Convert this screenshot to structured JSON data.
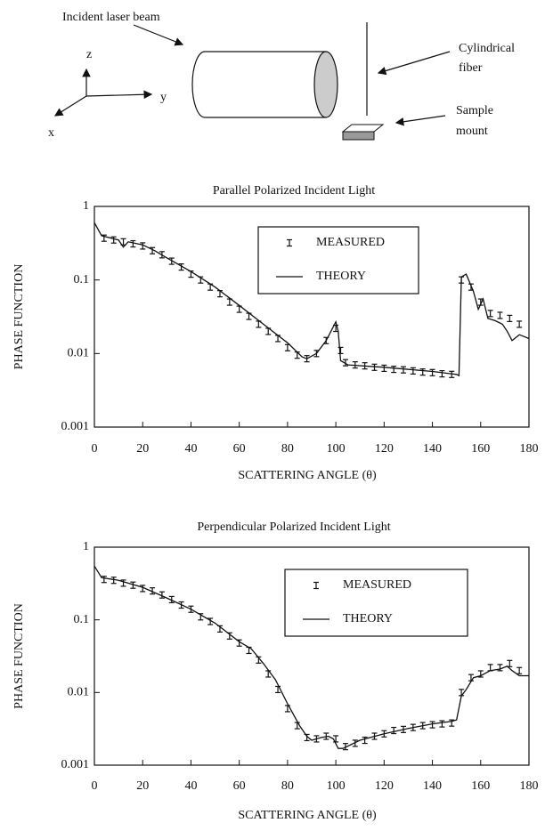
{
  "diagram": {
    "beam_label": "Incident laser beam",
    "axis_z": "z",
    "axis_y": "y",
    "axis_x": "x",
    "fiber_label": [
      "Cylindrical",
      "fiber"
    ],
    "mount_label": [
      "Sample",
      "mount"
    ]
  },
  "chart_data": [
    {
      "type": "line",
      "title": "Parallel Polarized Incident Light",
      "xlabel": "SCATTERING ANGLE (θ)",
      "ylabel": "PHASE FUNCTION",
      "xlim": [
        0,
        180
      ],
      "xticks": [
        0,
        20,
        40,
        60,
        80,
        100,
        120,
        140,
        160,
        180
      ],
      "ylim": [
        0.001,
        1
      ],
      "yticks": [
        0.001,
        0.01,
        0.1,
        1
      ],
      "yscale": "log",
      "series": [
        {
          "name": "MEASURED",
          "style": "errorbar",
          "color": "#111111",
          "x": [
            4,
            8,
            12,
            16,
            20,
            24,
            28,
            32,
            36,
            40,
            44,
            48,
            52,
            56,
            60,
            64,
            68,
            72,
            76,
            80,
            84,
            88,
            92,
            96,
            100,
            102,
            104,
            108,
            112,
            116,
            120,
            124,
            128,
            132,
            136,
            140,
            144,
            148,
            152,
            156,
            160,
            164,
            168,
            172,
            176
          ],
          "values": [
            0.37,
            0.35,
            0.33,
            0.31,
            0.29,
            0.25,
            0.22,
            0.18,
            0.15,
            0.12,
            0.1,
            0.08,
            0.065,
            0.05,
            0.04,
            0.032,
            0.025,
            0.02,
            0.016,
            0.012,
            0.0095,
            0.0085,
            0.01,
            0.015,
            0.022,
            0.011,
            0.0075,
            0.007,
            0.0068,
            0.0065,
            0.0063,
            0.0061,
            0.006,
            0.0058,
            0.0056,
            0.0055,
            0.0053,
            0.0052,
            0.1,
            0.08,
            0.05,
            0.035,
            0.033,
            0.03,
            0.025
          ]
        },
        {
          "name": "THEORY",
          "style": "line",
          "color": "#111111",
          "x": [
            0,
            3,
            10,
            12,
            14,
            20,
            25,
            30,
            40,
            50,
            60,
            70,
            80,
            86,
            88,
            92,
            96,
            100,
            101,
            102,
            105,
            120,
            140,
            150,
            151,
            152,
            154,
            157,
            159,
            161,
            163,
            166,
            169,
            171,
            173,
            176,
            178,
            180
          ],
          "values": [
            0.6,
            0.4,
            0.35,
            0.28,
            0.33,
            0.3,
            0.25,
            0.2,
            0.13,
            0.08,
            0.045,
            0.025,
            0.014,
            0.009,
            0.0085,
            0.01,
            0.015,
            0.027,
            0.02,
            0.008,
            0.007,
            0.0065,
            0.0057,
            0.0052,
            0.005,
            0.11,
            0.12,
            0.07,
            0.04,
            0.055,
            0.03,
            0.028,
            0.025,
            0.02,
            0.015,
            0.018,
            0.017,
            0.016
          ]
        }
      ]
    },
    {
      "type": "line",
      "title": "Perpendicular Polarized Incident Light",
      "xlabel": "SCATTERING ANGLE (θ)",
      "ylabel": "PHASE FUNCTION",
      "xlim": [
        0,
        180
      ],
      "xticks": [
        0,
        20,
        40,
        60,
        80,
        100,
        120,
        140,
        160,
        180
      ],
      "ylim": [
        0.001,
        1
      ],
      "yticks": [
        0.001,
        0.01,
        0.1,
        1
      ],
      "yscale": "log",
      "series": [
        {
          "name": "MEASURED",
          "style": "errorbar",
          "color": "#111111",
          "x": [
            4,
            8,
            12,
            16,
            20,
            24,
            28,
            32,
            36,
            40,
            44,
            48,
            52,
            56,
            60,
            64,
            68,
            72,
            76,
            80,
            84,
            88,
            92,
            96,
            100,
            104,
            108,
            112,
            116,
            120,
            124,
            128,
            132,
            136,
            140,
            144,
            148,
            152,
            156,
            160,
            164,
            168,
            172,
            176
          ],
          "values": [
            0.36,
            0.35,
            0.32,
            0.3,
            0.27,
            0.25,
            0.22,
            0.19,
            0.16,
            0.14,
            0.11,
            0.095,
            0.075,
            0.06,
            0.048,
            0.038,
            0.028,
            0.018,
            0.011,
            0.006,
            0.0035,
            0.0024,
            0.0023,
            0.0025,
            0.0023,
            0.0018,
            0.002,
            0.0022,
            0.0025,
            0.0027,
            0.003,
            0.0031,
            0.0033,
            0.0035,
            0.0036,
            0.0037,
            0.0038,
            0.01,
            0.016,
            0.018,
            0.022,
            0.022,
            0.025,
            0.02
          ]
        },
        {
          "name": "THEORY",
          "style": "line",
          "color": "#111111",
          "x": [
            0,
            3,
            10,
            20,
            30,
            40,
            50,
            60,
            65,
            70,
            75,
            80,
            85,
            88,
            90,
            94,
            97,
            99,
            101,
            103,
            110,
            120,
            130,
            140,
            148,
            150,
            152,
            154,
            157,
            160,
            164,
            168,
            171,
            173,
            176,
            180
          ],
          "values": [
            0.55,
            0.38,
            0.35,
            0.28,
            0.2,
            0.14,
            0.09,
            0.05,
            0.04,
            0.025,
            0.015,
            0.007,
            0.0035,
            0.0025,
            0.0022,
            0.0024,
            0.0025,
            0.0023,
            0.0017,
            0.0017,
            0.0022,
            0.0027,
            0.0032,
            0.0037,
            0.004,
            0.0042,
            0.009,
            0.011,
            0.016,
            0.017,
            0.02,
            0.021,
            0.023,
            0.02,
            0.017,
            0.017
          ]
        }
      ]
    }
  ]
}
